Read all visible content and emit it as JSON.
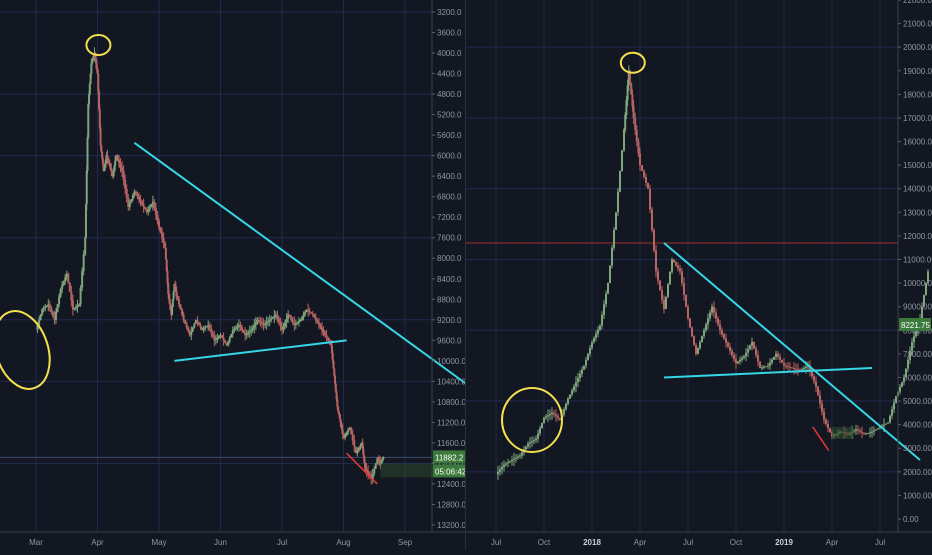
{
  "chart_data": [
    {
      "type": "candlestick",
      "title": "",
      "y_scale": "inverted",
      "y_ticks": [
        "3200.0",
        "3600.0",
        "4000.0",
        "4400.0",
        "4800.0",
        "5200.0",
        "5600.0",
        "6000.0",
        "6400.0",
        "6800.0",
        "7200.0",
        "7600.0",
        "8000.0",
        "8400.0",
        "8800.0",
        "9200.0",
        "9600.0",
        "10000.0",
        "10400.0",
        "10800.0",
        "11200.0",
        "11600.0",
        "12000.0",
        "12400.0",
        "12800.0",
        "13200.0"
      ],
      "x_ticks": [
        "Mar",
        "Apr",
        "May",
        "Jun",
        "Jul",
        "Aug",
        "Sep"
      ],
      "ylim": [
        3000,
        13400
      ],
      "x_months": [
        0,
        7
      ],
      "price_label": "11882.2",
      "timer_label": "05:06:42",
      "series": [
        {
          "values": [
            [
              0.0,
              9400
            ],
            [
              0.1,
              9000
            ],
            [
              0.2,
              8900
            ],
            [
              0.3,
              9200
            ],
            [
              0.4,
              8600
            ],
            [
              0.5,
              8300
            ],
            [
              0.6,
              9000
            ],
            [
              0.7,
              8900
            ],
            [
              0.8,
              7600
            ],
            [
              0.85,
              5000
            ],
            [
              0.9,
              4200
            ],
            [
              0.95,
              4000
            ],
            [
              1.0,
              4400
            ],
            [
              1.05,
              5800
            ],
            [
              1.1,
              6300
            ],
            [
              1.15,
              6000
            ],
            [
              1.2,
              6200
            ],
            [
              1.25,
              6400
            ],
            [
              1.3,
              6000
            ],
            [
              1.4,
              6300
            ],
            [
              1.5,
              7000
            ],
            [
              1.6,
              6700
            ],
            [
              1.7,
              6900
            ],
            [
              1.8,
              7100
            ],
            [
              1.9,
              6900
            ],
            [
              2.0,
              7400
            ],
            [
              2.1,
              7800
            ],
            [
              2.15,
              8700
            ],
            [
              2.2,
              9100
            ],
            [
              2.25,
              8500
            ],
            [
              2.3,
              8800
            ],
            [
              2.4,
              9200
            ],
            [
              2.5,
              9500
            ],
            [
              2.6,
              9200
            ],
            [
              2.7,
              9400
            ],
            [
              2.8,
              9300
            ],
            [
              2.9,
              9600
            ],
            [
              3.0,
              9500
            ],
            [
              3.1,
              9700
            ],
            [
              3.2,
              9400
            ],
            [
              3.3,
              9300
            ],
            [
              3.4,
              9500
            ],
            [
              3.5,
              9400
            ],
            [
              3.6,
              9200
            ],
            [
              3.7,
              9300
            ],
            [
              3.8,
              9200
            ],
            [
              3.9,
              9100
            ],
            [
              4.0,
              9400
            ],
            [
              4.1,
              9100
            ],
            [
              4.2,
              9300
            ],
            [
              4.3,
              9200
            ],
            [
              4.4,
              9000
            ],
            [
              4.5,
              9100
            ],
            [
              4.6,
              9300
            ],
            [
              4.7,
              9500
            ],
            [
              4.8,
              9700
            ],
            [
              4.85,
              10300
            ],
            [
              4.9,
              10900
            ],
            [
              4.95,
              11200
            ],
            [
              5.0,
              11500
            ],
            [
              5.1,
              11300
            ],
            [
              5.2,
              11800
            ],
            [
              5.3,
              11600
            ],
            [
              5.35,
              12100
            ],
            [
              5.45,
              12300
            ],
            [
              5.55,
              11900
            ],
            [
              5.6,
              12000
            ],
            [
              5.65,
              11882
            ]
          ]
        }
      ],
      "annotations": {
        "descending_trendline": [
          [
            1.6,
            5750
          ],
          [
            7.4,
            10800
          ]
        ],
        "support_line": [
          [
            2.25,
            10000
          ],
          [
            5.05,
            9600
          ]
        ],
        "red_line": [
          [
            5.05,
            11800
          ],
          [
            5.55,
            12400
          ]
        ],
        "yellow_marks": [
          "peak-circle",
          "base-oval"
        ],
        "price_level": 11882.2
      }
    },
    {
      "type": "candlestick",
      "title": "",
      "y_ticks": [
        "0.00",
        "1000.00",
        "2000.00",
        "3000.00",
        "4000.00",
        "5000.00",
        "6000.00",
        "7000.00",
        "8000.00",
        "9000.00",
        "10000.00",
        "11000.00",
        "12000.00",
        "13000.00",
        "14000.00",
        "15000.00",
        "16000.00",
        "17000.00",
        "18000.00",
        "19000.00",
        "20000.00",
        "21000.00",
        "22000.00"
      ],
      "x_ticks": [
        "Jul",
        "Oct",
        "2018",
        "Apr",
        "Jul",
        "Oct",
        "2019",
        "Apr",
        "Jul"
      ],
      "ylim": [
        -500,
        22200
      ],
      "x_months": [
        0,
        27
      ],
      "price_label": "8221.75",
      "series": [
        {
          "values": [
            [
              0.0,
              1900
            ],
            [
              0.5,
              2300
            ],
            [
              1.0,
              2500
            ],
            [
              1.5,
              2700
            ],
            [
              2.0,
              3200
            ],
            [
              2.5,
              3400
            ],
            [
              3.0,
              4300
            ],
            [
              3.5,
              4500
            ],
            [
              4.0,
              4200
            ],
            [
              4.5,
              5100
            ],
            [
              5.0,
              5800
            ],
            [
              5.5,
              6500
            ],
            [
              6.0,
              7500
            ],
            [
              6.5,
              8200
            ],
            [
              7.0,
              10000
            ],
            [
              7.5,
              13000
            ],
            [
              8.0,
              16500
            ],
            [
              8.3,
              19000
            ],
            [
              8.6,
              17000
            ],
            [
              9.0,
              15000
            ],
            [
              9.5,
              14000
            ],
            [
              10.0,
              10500
            ],
            [
              10.5,
              8900
            ],
            [
              11.0,
              11000
            ],
            [
              11.5,
              10500
            ],
            [
              12.0,
              8500
            ],
            [
              12.5,
              7000
            ],
            [
              13.0,
              8000
            ],
            [
              13.5,
              9000
            ],
            [
              14.0,
              8000
            ],
            [
              14.5,
              7300
            ],
            [
              15.0,
              6600
            ],
            [
              15.5,
              6900
            ],
            [
              16.0,
              7500
            ],
            [
              16.5,
              6400
            ],
            [
              17.0,
              6500
            ],
            [
              17.5,
              7000
            ],
            [
              18.0,
              6500
            ],
            [
              18.5,
              6400
            ],
            [
              19.0,
              6300
            ],
            [
              19.5,
              6500
            ],
            [
              20.0,
              5600
            ],
            [
              20.5,
              4200
            ],
            [
              21.0,
              3500
            ],
            [
              21.5,
              3700
            ],
            [
              22.0,
              3600
            ],
            [
              22.5,
              3800
            ],
            [
              23.0,
              3600
            ],
            [
              23.5,
              3700
            ],
            [
              24.0,
              3900
            ],
            [
              24.5,
              4100
            ],
            [
              25.0,
              5200
            ],
            [
              25.5,
              6000
            ],
            [
              26.0,
              7500
            ],
            [
              26.5,
              8500
            ],
            [
              27.0,
              10500
            ]
          ]
        }
      ],
      "annotations": {
        "descending_trendline": [
          [
            10.5,
            11700
          ],
          [
            26.5,
            2500
          ]
        ],
        "support_line": [
          [
            10.5,
            6000
          ],
          [
            23.5,
            6400
          ]
        ],
        "red_line": [
          [
            19.8,
            3900
          ],
          [
            20.8,
            2900
          ]
        ],
        "yellow_marks": [
          "peak-circle",
          "base-oval"
        ],
        "price_level": 11700
      }
    }
  ]
}
